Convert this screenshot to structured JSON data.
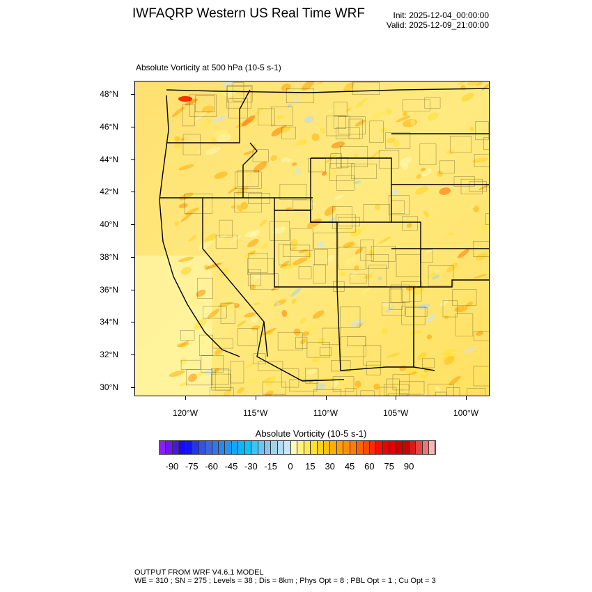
{
  "header": {
    "title": "IWFAQRP Western US Real Time WRF",
    "init": "Init: 2025-12-04_00:00:00",
    "valid": "Valid: 2025-12-09_21:00:00"
  },
  "plot": {
    "subtitle": "Absolute Vorticity at 500 hPa   (10-5 s-1)",
    "lat_labels": [
      "48°N",
      "46°N",
      "44°N",
      "42°N",
      "40°N",
      "38°N",
      "36°N",
      "34°N",
      "32°N",
      "30°N"
    ],
    "lat_values": [
      48,
      46,
      44,
      42,
      40,
      38,
      36,
      34,
      32,
      30
    ],
    "lon_labels": [
      "120°W",
      "115°W",
      "110°W",
      "105°W",
      "100°W"
    ],
    "lon_values": [
      -120,
      -115,
      -110,
      -105,
      -100
    ],
    "field_dominant_color": "#ffe97a"
  },
  "colorbar": {
    "title": "Absolute Vorticity  (10-5 s-1)",
    "labels": [
      "-90",
      "-75",
      "-60",
      "-45",
      "-30",
      "-15",
      "0",
      "15",
      "30",
      "45",
      "60",
      "75",
      "90"
    ],
    "colors": [
      "#8a22ee",
      "#6a18f0",
      "#4a12f6",
      "#1a08fa",
      "#1414f0",
      "#2436e6",
      "#3552e2",
      "#4064dc",
      "#3674e8",
      "#2a86f2",
      "#1e96f8",
      "#14a6f8",
      "#0cb6f8",
      "#0cc4fa",
      "#3cc4f2",
      "#62c8f0",
      "#88c6e8",
      "#a2d2ea",
      "#b4dcf0",
      "#cae6f2",
      "#fffab4",
      "#fff282",
      "#ffea54",
      "#ffe030",
      "#ffd020",
      "#ffbe12",
      "#ffae04",
      "#ffa000",
      "#ff9000",
      "#ff7c00",
      "#ff6400",
      "#ff4c00",
      "#ff2c00",
      "#ff0c00",
      "#f00000",
      "#e20000",
      "#d00000",
      "#c80404",
      "#d41c1c",
      "#e04646",
      "#f07474",
      "#ffb4b4"
    ]
  },
  "footer": {
    "line1": "OUTPUT FROM WRF V4.6.1 MODEL",
    "line2": "WE = 310 ; SN = 275 ; Levels = 38 ; Dis = 8km ; Phys Opt = 8 ; PBL Opt = 1 ; Cu Opt = 3"
  }
}
